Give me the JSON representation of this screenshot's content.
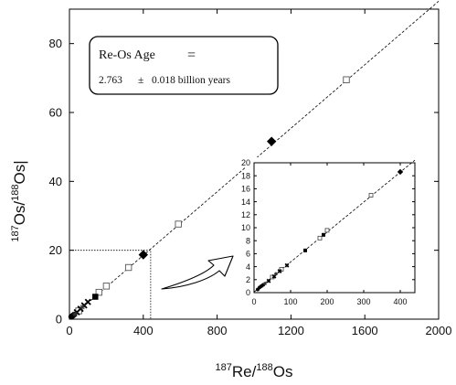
{
  "chart_data": [
    {
      "type": "scatter",
      "panel": "main",
      "xlabel": {
        "prefix_sup": "187",
        "main": "Re/",
        "sup2": "188",
        "main2": "Os"
      },
      "ylabel": {
        "prefix_sup": "187",
        "main": "Os/",
        "sup2": "188",
        "main2": "Os|"
      },
      "xlim": [
        0,
        2000
      ],
      "ylim": [
        0,
        90
      ],
      "xticks": [
        0,
        400,
        800,
        1200,
        1600,
        2000
      ],
      "yticks": [
        0,
        20,
        40,
        60,
        80
      ],
      "isochron": {
        "x": [
          0,
          2000
        ],
        "y": [
          0.1,
          92.3
        ]
      },
      "zoom_region": {
        "x": [
          0,
          440
        ],
        "y": [
          0,
          20
        ]
      },
      "annotation": {
        "title": "Re-Os Age",
        "equals": "=",
        "value": "2.763",
        "pm": "±",
        "error": "0.018 billion years"
      },
      "series": [
        {
          "marker": "open-square",
          "x": [
            50,
            160,
            200,
            320,
            590,
            1500
          ],
          "y": [
            2.4,
            7.8,
            9.6,
            15.0,
            27.6,
            69.5
          ]
        },
        {
          "marker": "filled-diamond",
          "x": [
            400,
            1095
          ],
          "y": [
            18.7,
            51.6
          ]
        },
        {
          "marker": "filled-square",
          "x": [
            140
          ],
          "y": [
            6.5
          ]
        },
        {
          "marker": "filled-circle",
          "x": [
            10,
            18,
            25
          ],
          "y": [
            0.7,
            1.0,
            1.3
          ]
        },
        {
          "marker": "cross",
          "x": [
            40,
            60,
            80,
            100
          ],
          "y": [
            2.0,
            3.0,
            4.0,
            5.0
          ]
        },
        {
          "marker": "star",
          "x": [
            30,
            70
          ],
          "y": [
            1.5,
            3.5
          ]
        }
      ]
    },
    {
      "type": "scatter",
      "panel": "inset",
      "xlim": [
        0,
        440
      ],
      "ylim": [
        0,
        20
      ],
      "xticks": [
        0,
        100,
        200,
        300,
        400
      ],
      "yticks": [
        0,
        2,
        4,
        6,
        8,
        10,
        12,
        14,
        16,
        18,
        20
      ],
      "isochron": {
        "x": [
          0,
          440
        ],
        "y": [
          0.1,
          20.4
        ]
      },
      "series": [
        {
          "marker": "open-square",
          "x": [
            50,
            75,
            180,
            200,
            320
          ],
          "y": [
            2.4,
            3.6,
            8.4,
            9.6,
            15.0
          ]
        },
        {
          "marker": "filled-diamond",
          "x": [
            400
          ],
          "y": [
            18.6
          ]
        },
        {
          "marker": "filled-square",
          "x": [
            140,
            190
          ],
          "y": [
            6.5,
            8.9
          ]
        },
        {
          "marker": "filled-circle",
          "x": [
            10,
            15,
            20,
            25
          ],
          "y": [
            0.5,
            0.8,
            1.0,
            1.2
          ]
        },
        {
          "marker": "cross",
          "x": [
            40,
            55,
            70,
            90
          ],
          "y": [
            1.8,
            2.5,
            3.3,
            4.2
          ]
        },
        {
          "marker": "star",
          "x": [
            30,
            60
          ],
          "y": [
            1.4,
            2.9
          ]
        }
      ]
    }
  ]
}
